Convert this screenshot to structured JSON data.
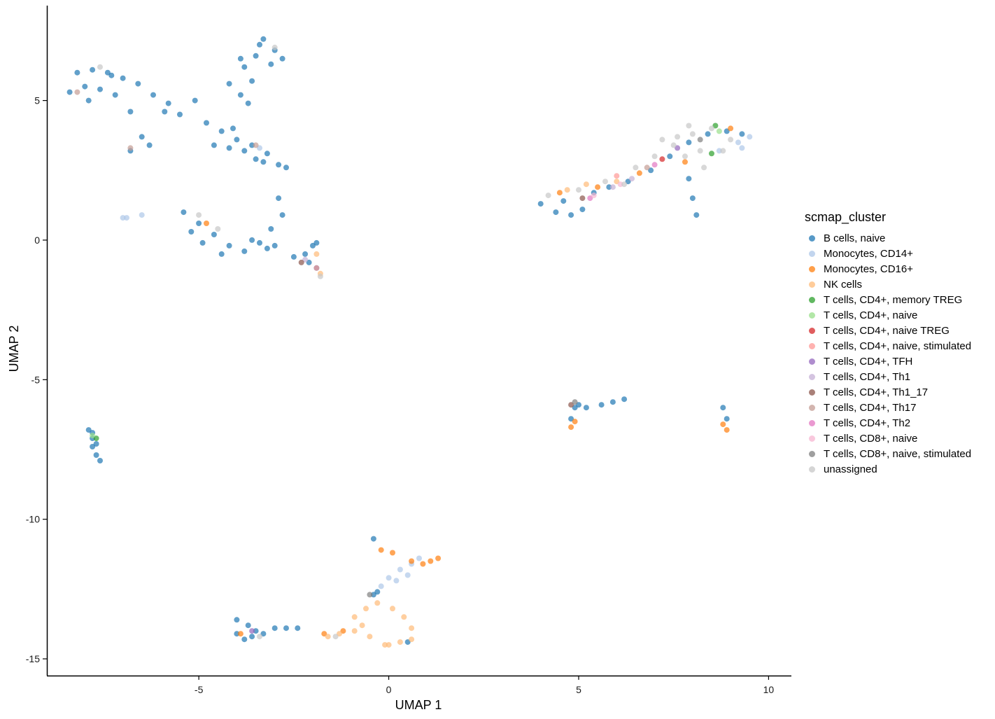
{
  "chart_data": {
    "type": "scatter",
    "xlabel": "UMAP 1",
    "ylabel": "UMAP 2",
    "xlim": [
      -9,
      10.6
    ],
    "ylim": [
      -15.6,
      8.4
    ],
    "x_ticks": [
      -5,
      0,
      5,
      10
    ],
    "y_ticks": [
      5,
      0,
      -5,
      -10,
      -15
    ],
    "x_tick_labels": [
      "-5",
      "0",
      "5",
      "10"
    ],
    "y_tick_labels": [
      "5",
      "0",
      "-5",
      "-10",
      "-15"
    ],
    "grid": false,
    "legend_position": "right",
    "legend_title": "scmap_cluster",
    "categories": [
      {
        "name": "B cells, naive",
        "color": "#1f77b4"
      },
      {
        "name": "Monocytes, CD14+",
        "color": "#aec7e8"
      },
      {
        "name": "Monocytes, CD16+",
        "color": "#ff7f0e"
      },
      {
        "name": "NK cells",
        "color": "#ffbb78"
      },
      {
        "name": "T cells, CD4+, memory TREG",
        "color": "#2ca02c"
      },
      {
        "name": "T cells, CD4+, naive",
        "color": "#98df8a"
      },
      {
        "name": "T cells, CD4+, naive TREG",
        "color": "#d62728"
      },
      {
        "name": "T cells, CD4+, naive, stimulated",
        "color": "#ff9896"
      },
      {
        "name": "T cells, CD4+, TFH",
        "color": "#9467bd"
      },
      {
        "name": "T cells, CD4+, Th1",
        "color": "#c5b0d5"
      },
      {
        "name": "T cells, CD4+, Th1_17",
        "color": "#8c564b"
      },
      {
        "name": "T cells, CD4+, Th17",
        "color": "#c49c94"
      },
      {
        "name": "T cells, CD4+, Th2",
        "color": "#e377c2"
      },
      {
        "name": "T cells, CD8+, naive",
        "color": "#f7b6d2"
      },
      {
        "name": "T cells, CD8+, naive, stimulated",
        "color": "#7f7f7f"
      },
      {
        "name": "unassigned",
        "color": "#c7c7c7"
      }
    ],
    "clusters": [
      {
        "label": "B cells, naive",
        "points": [
          [
            -8.2,
            6.0
          ],
          [
            -7.8,
            6.1
          ],
          [
            -7.4,
            6.0
          ],
          [
            -7.0,
            5.8
          ],
          [
            -6.6,
            5.6
          ],
          [
            -6.2,
            5.2
          ],
          [
            -5.8,
            4.9
          ],
          [
            -8.0,
            5.5
          ],
          [
            -7.6,
            5.4
          ],
          [
            -7.2,
            5.2
          ],
          [
            -6.8,
            4.6
          ],
          [
            -6.5,
            3.7
          ],
          [
            -6.8,
            3.2
          ],
          [
            -6.3,
            3.4
          ],
          [
            -5.9,
            4.6
          ],
          [
            -5.5,
            4.5
          ],
          [
            -5.1,
            5.0
          ],
          [
            -7.9,
            5.0
          ],
          [
            -8.4,
            5.3
          ],
          [
            -7.3,
            5.9
          ]
        ]
      },
      {
        "label": "B cells, naive",
        "points": [
          [
            -4.8,
            4.2
          ],
          [
            -4.4,
            3.9
          ],
          [
            -4.0,
            3.6
          ],
          [
            -3.6,
            3.4
          ],
          [
            -3.2,
            3.1
          ],
          [
            -2.9,
            2.7
          ],
          [
            -3.5,
            2.9
          ],
          [
            -4.6,
            3.4
          ],
          [
            -4.2,
            3.3
          ],
          [
            -3.8,
            3.2
          ],
          [
            -3.3,
            2.8
          ],
          [
            -2.7,
            2.6
          ],
          [
            -4.1,
            4.0
          ]
        ]
      },
      {
        "label": "B cells, naive",
        "points": [
          [
            -3.4,
            7.0
          ],
          [
            -3.0,
            6.8
          ],
          [
            -2.8,
            6.5
          ],
          [
            -3.8,
            6.2
          ],
          [
            -3.6,
            5.7
          ],
          [
            -3.9,
            5.2
          ],
          [
            -3.5,
            6.6
          ],
          [
            -3.1,
            6.3
          ],
          [
            -3.7,
            4.9
          ],
          [
            -4.2,
            5.6
          ],
          [
            -3.3,
            7.2
          ],
          [
            -3.9,
            6.5
          ]
        ]
      },
      {
        "label": "B cells, naive",
        "points": [
          [
            -5.4,
            1.0
          ],
          [
            -5.0,
            0.6
          ],
          [
            -4.6,
            0.2
          ],
          [
            -4.2,
            -0.2
          ],
          [
            -3.8,
            -0.4
          ],
          [
            -3.4,
            -0.1
          ],
          [
            -3.1,
            0.4
          ],
          [
            -2.8,
            0.9
          ],
          [
            -3.6,
            0.0
          ],
          [
            -4.4,
            -0.5
          ],
          [
            -5.2,
            0.3
          ],
          [
            -4.9,
            -0.1
          ],
          [
            -3.2,
            -0.3
          ],
          [
            -2.9,
            1.5
          ],
          [
            -3.0,
            -0.2
          ]
        ]
      },
      {
        "label": "B cells, naive",
        "points": [
          [
            -7.9,
            -6.8
          ],
          [
            -7.8,
            -7.1
          ],
          [
            -7.8,
            -7.4
          ],
          [
            -7.7,
            -7.7
          ],
          [
            -7.6,
            -7.9
          ],
          [
            -7.8,
            -6.9
          ],
          [
            -7.7,
            -7.3
          ]
        ]
      },
      {
        "label": "B cells, naive",
        "points": [
          [
            -4.0,
            -14.1
          ],
          [
            -3.7,
            -13.8
          ],
          [
            -3.5,
            -14.0
          ],
          [
            -3.8,
            -14.3
          ],
          [
            -3.3,
            -14.1
          ],
          [
            -3.0,
            -13.9
          ],
          [
            -2.7,
            -13.9
          ],
          [
            -4.0,
            -13.6
          ],
          [
            -3.6,
            -14.2
          ],
          [
            -2.4,
            -13.9
          ]
        ]
      },
      {
        "label": "B cells, naive",
        "points": [
          [
            4.0,
            1.3
          ],
          [
            4.4,
            1.0
          ],
          [
            4.8,
            0.9
          ],
          [
            5.1,
            1.1
          ],
          [
            4.6,
            1.4
          ],
          [
            5.4,
            1.7
          ],
          [
            5.8,
            1.9
          ],
          [
            6.3,
            2.1
          ],
          [
            6.9,
            2.5
          ],
          [
            7.4,
            3.0
          ],
          [
            7.9,
            3.5
          ],
          [
            8.4,
            3.8
          ],
          [
            8.9,
            3.9
          ],
          [
            9.3,
            3.8
          ],
          [
            8.1,
            0.9
          ],
          [
            8.0,
            1.5
          ],
          [
            7.9,
            2.2
          ]
        ]
      },
      {
        "label": "B cells, naive",
        "points": [
          [
            4.9,
            -6.0
          ],
          [
            5.2,
            -6.0
          ],
          [
            5.6,
            -5.9
          ],
          [
            5.9,
            -5.8
          ],
          [
            6.2,
            -5.7
          ],
          [
            8.8,
            -6.0
          ],
          [
            8.9,
            -6.4
          ],
          [
            4.8,
            -6.4
          ],
          [
            5.0,
            -5.9
          ]
        ]
      },
      {
        "label": "B cells, naive",
        "points": [
          [
            -2.5,
            -0.6
          ],
          [
            -2.1,
            -0.8
          ],
          [
            -1.9,
            -1.0
          ],
          [
            -2.0,
            -0.2
          ],
          [
            -1.9,
            -0.1
          ],
          [
            -2.2,
            -0.5
          ]
        ]
      },
      {
        "label": "B cells, naive",
        "points": [
          [
            -0.4,
            -10.7
          ],
          [
            -0.3,
            -12.6
          ],
          [
            -0.4,
            -12.7
          ],
          [
            0.5,
            -14.4
          ]
        ]
      },
      {
        "label": "Monocytes, CD14+",
        "points": [
          [
            0.0,
            -12.1
          ],
          [
            0.3,
            -11.8
          ],
          [
            0.6,
            -11.6
          ],
          [
            0.5,
            -12.0
          ],
          [
            -0.2,
            -12.4
          ],
          [
            0.2,
            -12.2
          ],
          [
            0.8,
            -11.4
          ],
          [
            9.2,
            3.5
          ],
          [
            9.5,
            3.7
          ],
          [
            9.3,
            3.3
          ],
          [
            8.7,
            3.2
          ],
          [
            -7.0,
            0.8
          ],
          [
            -6.5,
            0.9
          ],
          [
            -3.4,
            3.3
          ],
          [
            -6.9,
            0.8
          ]
        ]
      },
      {
        "label": "Monocytes, CD16+",
        "points": [
          [
            -0.2,
            -11.1
          ],
          [
            0.1,
            -11.2
          ],
          [
            0.6,
            -11.5
          ],
          [
            0.9,
            -11.6
          ],
          [
            1.1,
            -11.5
          ],
          [
            1.3,
            -11.4
          ],
          [
            4.8,
            -6.7
          ],
          [
            4.9,
            -6.5
          ],
          [
            8.8,
            -6.6
          ],
          [
            8.9,
            -6.8
          ],
          [
            4.5,
            1.7
          ],
          [
            5.5,
            1.9
          ],
          [
            6.6,
            2.4
          ],
          [
            7.8,
            2.8
          ],
          [
            9.0,
            4.0
          ],
          [
            -4.8,
            0.6
          ],
          [
            -1.2,
            -14.0
          ],
          [
            -1.7,
            -14.1
          ],
          [
            -3.9,
            -14.1
          ]
        ]
      },
      {
        "label": "NK cells",
        "points": [
          [
            -0.9,
            -13.5
          ],
          [
            -0.6,
            -13.2
          ],
          [
            -0.3,
            -13.0
          ],
          [
            0.1,
            -13.2
          ],
          [
            0.4,
            -13.5
          ],
          [
            0.6,
            -13.9
          ],
          [
            0.6,
            -14.3
          ],
          [
            0.3,
            -14.4
          ],
          [
            -0.1,
            -14.5
          ],
          [
            -0.5,
            -14.2
          ],
          [
            -0.9,
            -14.0
          ],
          [
            -1.3,
            -14.1
          ],
          [
            -1.6,
            -14.2
          ],
          [
            -0.7,
            -13.8
          ],
          [
            0.0,
            -14.5
          ],
          [
            4.7,
            1.8
          ],
          [
            5.2,
            2.0
          ],
          [
            6.0,
            2.1
          ],
          [
            -1.8,
            -1.2
          ],
          [
            -1.9,
            -0.5
          ]
        ]
      },
      {
        "label": "T cells, CD4+, memory TREG",
        "points": [
          [
            8.6,
            4.1
          ],
          [
            8.5,
            3.1
          ],
          [
            -7.7,
            -7.1
          ]
        ]
      },
      {
        "label": "T cells, CD4+, naive",
        "points": [
          [
            8.7,
            3.9
          ],
          [
            -7.8,
            -7.0
          ]
        ]
      },
      {
        "label": "T cells, CD4+, naive TREG",
        "points": [
          [
            7.2,
            2.9
          ]
        ]
      },
      {
        "label": "T cells, CD4+, naive, stimulated",
        "points": [
          [
            6.0,
            2.3
          ],
          [
            -1.9,
            -1.0
          ]
        ]
      },
      {
        "label": "T cells, CD4+, TFH",
        "points": [
          [
            7.6,
            3.3
          ],
          [
            -3.6,
            -14.0
          ]
        ]
      },
      {
        "label": "T cells, CD4+, Th1",
        "points": [
          [
            5.9,
            1.9
          ],
          [
            6.4,
            2.2
          ],
          [
            -2.2,
            -0.7
          ]
        ]
      },
      {
        "label": "T cells, CD4+, Th1_17",
        "points": [
          [
            5.1,
            1.5
          ],
          [
            -2.3,
            -0.8
          ],
          [
            4.8,
            -5.9
          ]
        ]
      },
      {
        "label": "T cells, CD4+, Th17",
        "points": [
          [
            6.8,
            2.6
          ],
          [
            -3.5,
            3.4
          ],
          [
            -8.2,
            5.3
          ],
          [
            -6.8,
            3.3
          ]
        ]
      },
      {
        "label": "T cells, CD4+, Th2",
        "points": [
          [
            5.3,
            1.5
          ],
          [
            7.0,
            2.7
          ]
        ]
      },
      {
        "label": "T cells, CD8+, naive",
        "points": [
          [
            5.4,
            1.6
          ],
          [
            6.1,
            2.0
          ]
        ]
      },
      {
        "label": "T cells, CD8+, naive, stimulated",
        "points": [
          [
            8.2,
            3.6
          ],
          [
            4.9,
            -5.8
          ],
          [
            -0.5,
            -12.7
          ]
        ]
      },
      {
        "label": "unassigned",
        "points": [
          [
            7.0,
            3.0
          ],
          [
            7.5,
            3.4
          ],
          [
            8.0,
            3.8
          ],
          [
            8.5,
            4.0
          ],
          [
            9.0,
            3.6
          ],
          [
            8.2,
            3.2
          ],
          [
            7.6,
            3.7
          ],
          [
            7.2,
            3.6
          ],
          [
            6.5,
            2.6
          ],
          [
            7.8,
            3.0
          ],
          [
            8.8,
            3.2
          ],
          [
            6.2,
            2.0
          ],
          [
            5.0,
            1.8
          ],
          [
            5.7,
            2.1
          ],
          [
            4.2,
            1.6
          ],
          [
            8.3,
            2.6
          ],
          [
            7.9,
            4.1
          ],
          [
            -5.0,
            0.9
          ],
          [
            -7.6,
            6.2
          ],
          [
            -3.0,
            6.9
          ],
          [
            -4.5,
            0.4
          ],
          [
            -1.8,
            -1.3
          ],
          [
            -3.4,
            -14.2
          ],
          [
            -1.4,
            -14.2
          ]
        ]
      }
    ]
  }
}
